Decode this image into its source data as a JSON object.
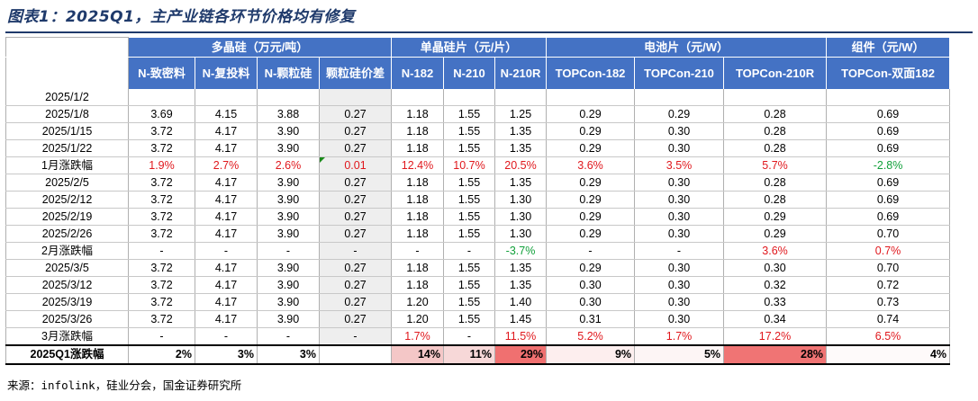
{
  "title": "图表1：2025Q1，主产业链各环节价格均有修复",
  "source": "来源：infolink，硅业分会，国金证券研究所",
  "colors": {
    "header": "#4472c4",
    "up": "#e0181d",
    "down": "#11a03a",
    "shade": "#eeeeee"
  },
  "groups": [
    {
      "label": "多晶硅（万元/吨）",
      "span": 4
    },
    {
      "label": "单晶硅片（元/片）",
      "span": 3
    },
    {
      "label": "电池片（元/W）",
      "span": 3
    },
    {
      "label": "组件（元/W）",
      "span": 1
    }
  ],
  "columns": [
    "N-致密料",
    "N-复投料",
    "N-颗粒硅",
    "颗粒硅价差",
    "N-182",
    "N-210",
    "N-210R",
    "TOPCon-182",
    "TOPCon-210",
    "TOPCon-210R",
    "TOPCon-双面182"
  ],
  "rows": [
    {
      "date": "2025/1/2",
      "cells": [
        "",
        "",
        "",
        "",
        "",
        "",
        "",
        "",
        "",
        "",
        ""
      ]
    },
    {
      "date": "2025/1/8",
      "cells": [
        "3.69",
        "4.15",
        "3.88",
        "0.27",
        "1.18",
        "1.55",
        "1.25",
        "0.29",
        "0.29",
        "0.28",
        "0.69"
      ]
    },
    {
      "date": "2025/1/15",
      "cells": [
        "3.72",
        "4.17",
        "3.90",
        "0.27",
        "1.18",
        "1.55",
        "1.35",
        "0.29",
        "0.30",
        "0.28",
        "0.69"
      ]
    },
    {
      "date": "2025/1/22",
      "cells": [
        "3.72",
        "4.17",
        "3.90",
        "0.27",
        "1.18",
        "1.55",
        "1.35",
        "0.29",
        "0.30",
        "0.28",
        "0.69"
      ]
    },
    {
      "date": "1月涨跌幅",
      "change": true,
      "cells": [
        "1.9%",
        "2.7%",
        "2.6%",
        "0.01",
        "12.4%",
        "10.7%",
        "20.5%",
        "3.6%",
        "3.5%",
        "5.7%",
        "-2.8%"
      ],
      "tones": [
        "red",
        "red",
        "red",
        "red",
        "red",
        "red",
        "red",
        "red",
        "red",
        "red",
        "green"
      ]
    },
    {
      "date": "2025/2/5",
      "cells": [
        "3.72",
        "4.17",
        "3.90",
        "0.27",
        "1.18",
        "1.55",
        "1.35",
        "0.29",
        "0.30",
        "0.28",
        "0.69"
      ]
    },
    {
      "date": "2025/2/12",
      "cells": [
        "3.72",
        "4.17",
        "3.90",
        "0.27",
        "1.18",
        "1.55",
        "1.30",
        "0.29",
        "0.30",
        "0.28",
        "0.69"
      ]
    },
    {
      "date": "2025/2/19",
      "cells": [
        "3.72",
        "4.17",
        "3.90",
        "0.27",
        "1.18",
        "1.55",
        "1.30",
        "0.29",
        "0.30",
        "0.29",
        "0.69"
      ]
    },
    {
      "date": "2025/2/26",
      "cells": [
        "3.72",
        "4.17",
        "3.90",
        "0.27",
        "1.18",
        "1.55",
        "1.30",
        "0.29",
        "0.30",
        "0.29",
        "0.70"
      ]
    },
    {
      "date": "2月涨跌幅",
      "change": true,
      "cells": [
        "-",
        "-",
        "-",
        "-",
        "-",
        "-",
        "-3.7%",
        "-",
        "-",
        "3.6%",
        "0.7%"
      ],
      "tones": [
        "",
        "",
        "",
        "",
        "",
        "",
        "green",
        "",
        "",
        "red",
        "red"
      ]
    },
    {
      "date": "2025/3/5",
      "cells": [
        "3.72",
        "4.17",
        "3.90",
        "0.27",
        "1.18",
        "1.55",
        "1.35",
        "0.29",
        "0.30",
        "0.30",
        "0.70"
      ]
    },
    {
      "date": "2025/3/12",
      "cells": [
        "3.72",
        "4.17",
        "3.90",
        "0.27",
        "1.18",
        "1.55",
        "1.35",
        "0.30",
        "0.30",
        "0.32",
        "0.72"
      ]
    },
    {
      "date": "2025/3/19",
      "cells": [
        "3.72",
        "4.17",
        "3.90",
        "0.27",
        "1.20",
        "1.55",
        "1.40",
        "0.30",
        "0.30",
        "0.33",
        "0.73"
      ]
    },
    {
      "date": "2025/3/26",
      "cells": [
        "3.72",
        "4.17",
        "3.90",
        "0.27",
        "1.20",
        "1.55",
        "1.45",
        "0.31",
        "0.30",
        "0.34",
        "0.74"
      ]
    },
    {
      "date": "3月涨跌幅",
      "change": true,
      "cells": [
        "-",
        "-",
        "-",
        "-",
        "1.7%",
        "-",
        "11.5%",
        "5.2%",
        "1.7%",
        "17.2%",
        "6.5%"
      ],
      "tones": [
        "",
        "",
        "",
        "",
        "red",
        "",
        "red",
        "red",
        "red",
        "red",
        "red"
      ]
    }
  ],
  "total": {
    "label": "2025Q1涨跌幅",
    "cells": [
      "2%",
      "3%",
      "3%",
      "",
      "14%",
      "11%",
      "29%",
      "9%",
      "5%",
      "28%",
      "4%"
    ],
    "heat": [
      "",
      "",
      "",
      "",
      "#f4c7c7",
      "#f7d8d8",
      "#f07070",
      "#fdeeee",
      "#fdf5f5",
      "#f07474",
      "#fefafa"
    ]
  }
}
